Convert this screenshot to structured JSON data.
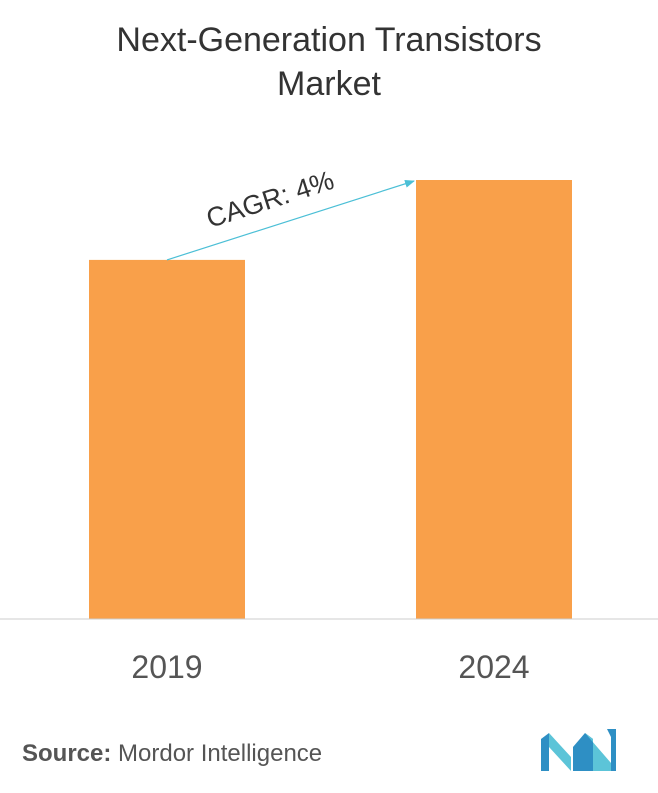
{
  "chart_data": {
    "type": "bar",
    "title_line1": "Next-Generation Transistors",
    "title_line2": "Market",
    "categories": [
      "2019",
      "2024"
    ],
    "values": [
      0.818,
      1.0
    ],
    "ylim": [
      0,
      1.0
    ],
    "bar_color": "#F9A04A",
    "annotation": "CAGR: 4%",
    "annotation_color": "#4BBFD6",
    "grid": false
  },
  "footer": {
    "source_label": "Source:",
    "source_text": "Mordor Intelligence",
    "logo_icon": "mordor-intelligence-logo"
  }
}
